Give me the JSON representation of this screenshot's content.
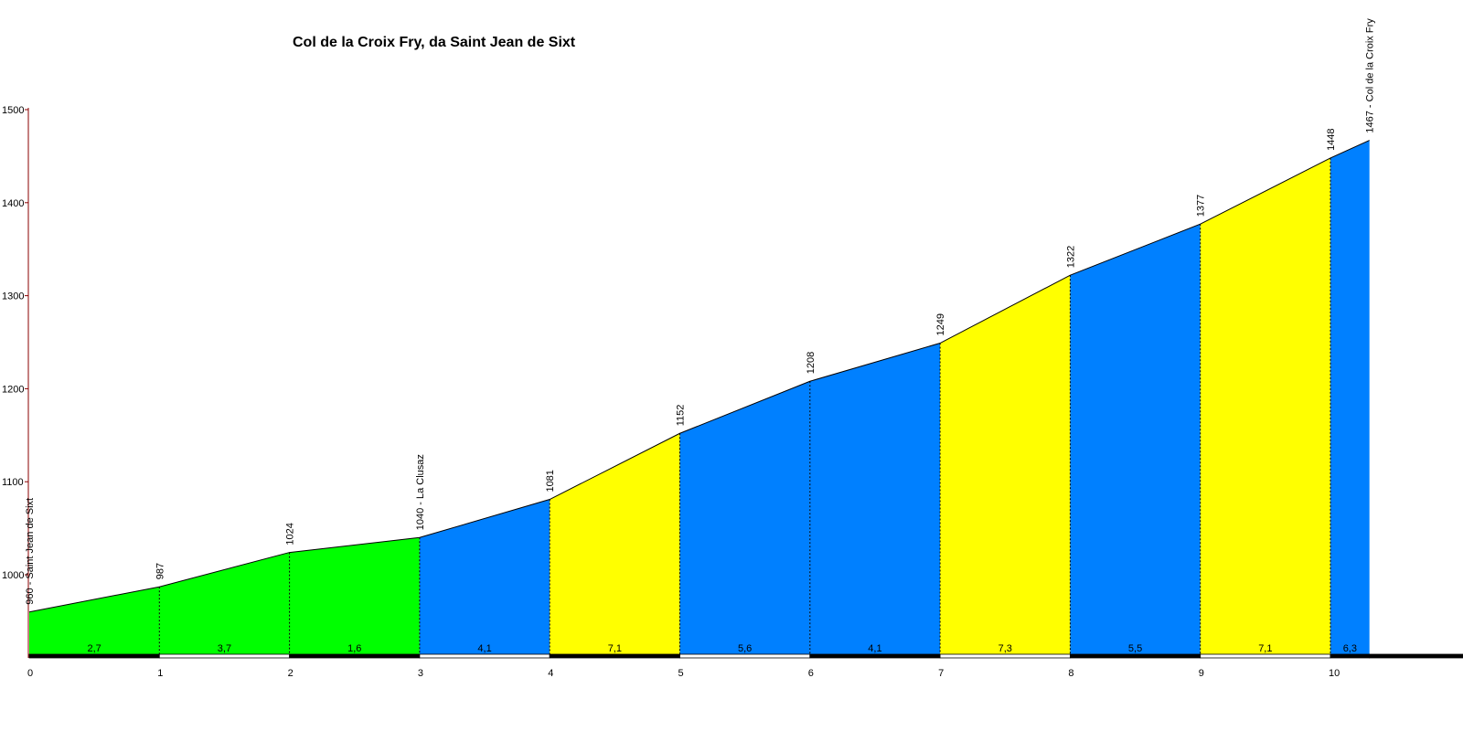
{
  "title": "Col de la Croix Fry, da Saint Jean de Sixt",
  "chart_data": {
    "type": "area",
    "title": "Col de la Croix Fry, da Saint Jean de Sixt",
    "xlabel": "",
    "ylabel": "",
    "xlim": [
      0,
      10.3
    ],
    "ylim": [
      900,
      1500
    ],
    "y_ticks": [
      1000,
      1100,
      1200,
      1300,
      1400,
      1500
    ],
    "x_ticks": [
      0,
      1,
      2,
      3,
      4,
      5,
      6,
      7,
      8,
      9,
      10
    ],
    "grid": false,
    "points": [
      {
        "x": 0,
        "y": 960,
        "label": "960 - Saint Jean de Sixt"
      },
      {
        "x": 1,
        "y": 987,
        "label": "987"
      },
      {
        "x": 2,
        "y": 1024,
        "label": "1024"
      },
      {
        "x": 3,
        "y": 1040,
        "label": "1040 - La Clusaz"
      },
      {
        "x": 4,
        "y": 1081,
        "label": "1081"
      },
      {
        "x": 5,
        "y": 1152,
        "label": "1152"
      },
      {
        "x": 6,
        "y": 1208,
        "label": "1208"
      },
      {
        "x": 7,
        "y": 1249,
        "label": "1249"
      },
      {
        "x": 8,
        "y": 1322,
        "label": "1322"
      },
      {
        "x": 9,
        "y": 1377,
        "label": "1377"
      },
      {
        "x": 10,
        "y": 1448,
        "label": "1448"
      },
      {
        "x": 10.3,
        "y": 1467,
        "label": "1467 - Col de la Croix Fry"
      }
    ],
    "segments": [
      {
        "from": 0,
        "to": 1,
        "gradient": "2,7",
        "color": "#00ff00"
      },
      {
        "from": 1,
        "to": 2,
        "gradient": "3,7",
        "color": "#00ff00"
      },
      {
        "from": 2,
        "to": 3,
        "gradient": "1,6",
        "color": "#00ff00"
      },
      {
        "from": 3,
        "to": 4,
        "gradient": "4,1",
        "color": "#0080ff"
      },
      {
        "from": 4,
        "to": 5,
        "gradient": "7,1",
        "color": "#ffff00"
      },
      {
        "from": 5,
        "to": 6,
        "gradient": "5,6",
        "color": "#0080ff"
      },
      {
        "from": 6,
        "to": 7,
        "gradient": "4,1",
        "color": "#0080ff"
      },
      {
        "from": 7,
        "to": 8,
        "gradient": "7,3",
        "color": "#ffff00"
      },
      {
        "from": 8,
        "to": 9,
        "gradient": "5,5",
        "color": "#0080ff"
      },
      {
        "from": 9,
        "to": 10,
        "gradient": "7,1",
        "color": "#ffff00"
      },
      {
        "from": 10,
        "to": 10.3,
        "gradient": "6,3",
        "color": "#0080ff"
      }
    ]
  }
}
